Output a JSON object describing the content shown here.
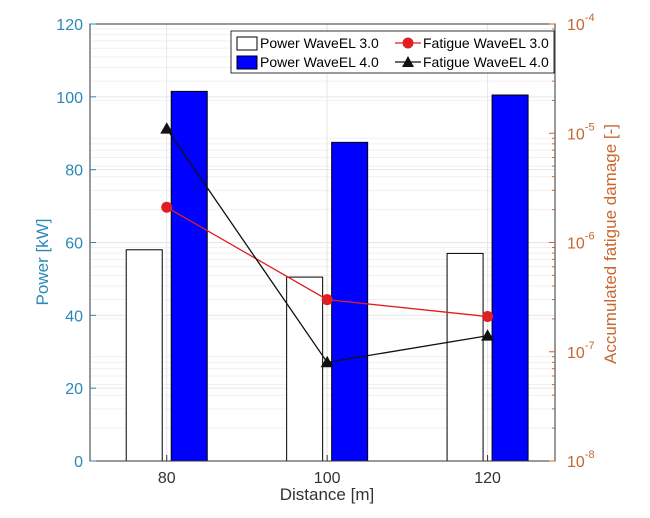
{
  "chart_data": {
    "type": "bar",
    "categories": [
      "80",
      "100",
      "120"
    ],
    "xlabel": "Distance [m]",
    "ylabel_left": "Power [kW]",
    "ylabel_right": "Accumulated fatigue damage [-]",
    "ylim_left": [
      0,
      120
    ],
    "yticks_left": [
      "0",
      "20",
      "40",
      "60",
      "80",
      "100",
      "120"
    ],
    "ylim_right": [
      1e-08,
      0.0001
    ],
    "yscale_right": "log",
    "yticks_right": [
      {
        "base": "10",
        "exp": "-8"
      },
      {
        "base": "10",
        "exp": "-7"
      },
      {
        "base": "10",
        "exp": "-6"
      },
      {
        "base": "10",
        "exp": "-5"
      },
      {
        "base": "10",
        "exp": "-4"
      }
    ],
    "grid": true,
    "legend_placement": "top-right",
    "series": [
      {
        "name": "Power WaveEL 3.0",
        "kind": "bar",
        "axis": "left",
        "values": [
          58,
          50.5,
          57
        ],
        "fill": "#ffffff",
        "stroke": "#000000"
      },
      {
        "name": "Power WaveEL 4.0",
        "kind": "bar",
        "axis": "left",
        "values": [
          101.5,
          87.5,
          100.5
        ],
        "fill": "#0000ff",
        "stroke": "#000000"
      },
      {
        "name": "Fatigue WaveEL 3.0",
        "kind": "line",
        "axis": "right",
        "values": [
          2.1e-06,
          3e-07,
          2.1e-07
        ],
        "color": "#e02020",
        "marker": "circle"
      },
      {
        "name": "Fatigue WaveEL 4.0",
        "kind": "line",
        "axis": "right",
        "values": [
          1.1e-05,
          8e-08,
          1.4e-07
        ],
        "color": "#111111",
        "marker": "triangle"
      }
    ]
  },
  "colors": {
    "left_axis": "#2a87b8",
    "right_axis": "#c8672e",
    "grid": "#e6e6e6",
    "axes": "#333333"
  }
}
